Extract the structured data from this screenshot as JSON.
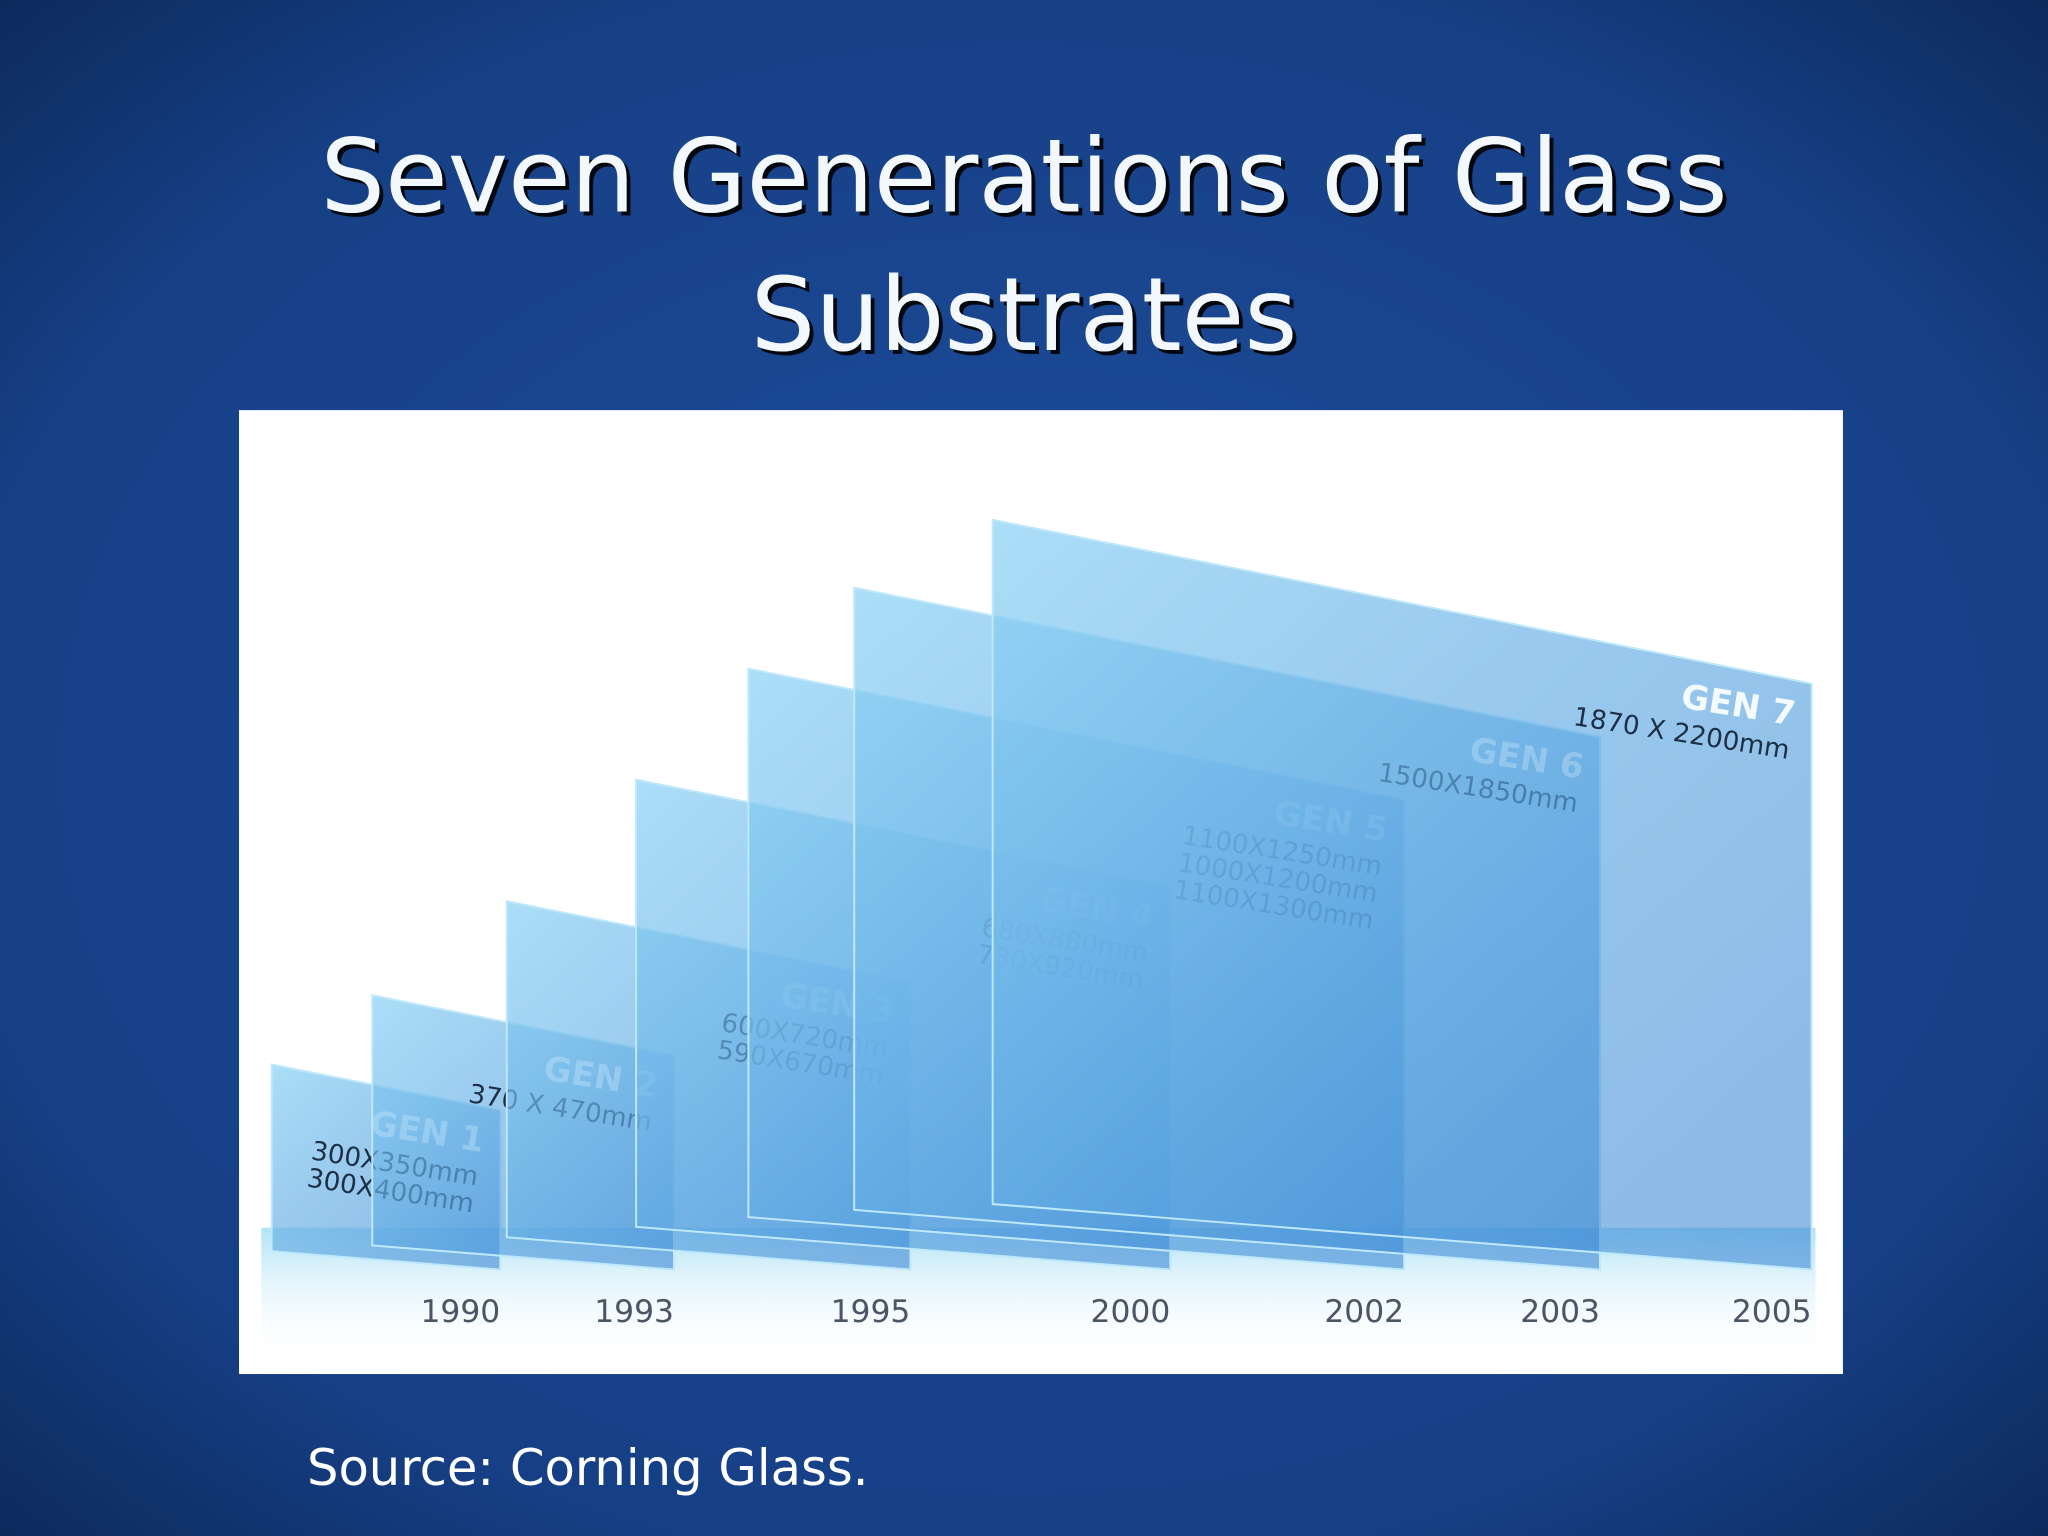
{
  "title": [
    "Seven Generations of Glass",
    "Substrates"
  ],
  "generations": [
    {
      "label": "GEN 1",
      "sizes": [
        "300X350mm",
        "300X400mm"
      ],
      "year": "1990"
    },
    {
      "label": "GEN 2",
      "sizes": [
        "370 X 470mm"
      ],
      "year": "1993"
    },
    {
      "label": "GEN 3",
      "sizes": [
        "600X720mm",
        "590X670mm"
      ],
      "year": "1995"
    },
    {
      "label": "GEN 4",
      "sizes": [
        "680X880mm",
        "730X920mm"
      ],
      "year": "2000"
    },
    {
      "label": "GEN 5",
      "sizes": [
        "1100X1250mm",
        "1000X1200mm",
        "1100X1300mm"
      ],
      "year": "2002"
    },
    {
      "label": "GEN 6",
      "sizes": [
        "1500X1850mm"
      ],
      "year": "2003"
    },
    {
      "label": "GEN 7",
      "sizes": [
        "1870 X 2200mm"
      ],
      "year": "2005"
    }
  ],
  "source": "Source: Corning Glass."
}
